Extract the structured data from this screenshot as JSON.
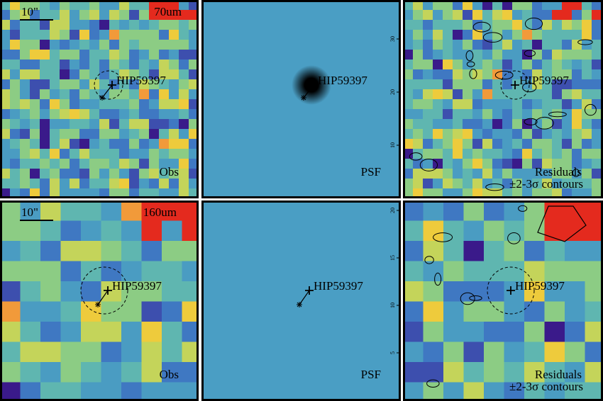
{
  "panels": [
    {
      "band": "70um",
      "scale": "10\"",
      "target": "HIP59397",
      "label": "Obs"
    },
    {
      "target": "HIP59397",
      "label": "PSF",
      "ticks": [
        "30",
        "20",
        "10"
      ]
    },
    {
      "target": "HIP59397",
      "label": "Residuals",
      "sublabel": "±2-3σ contours"
    },
    {
      "band": "160um",
      "scale": "10\"",
      "target": "HIP59397",
      "label": "Obs"
    },
    {
      "target": "HIP59397",
      "label": "PSF",
      "ticks": [
        "20",
        "15",
        "10",
        "5"
      ]
    },
    {
      "target": "HIP59397",
      "label": "Residuals",
      "sublabel": "±2-3σ contours"
    }
  ]
}
